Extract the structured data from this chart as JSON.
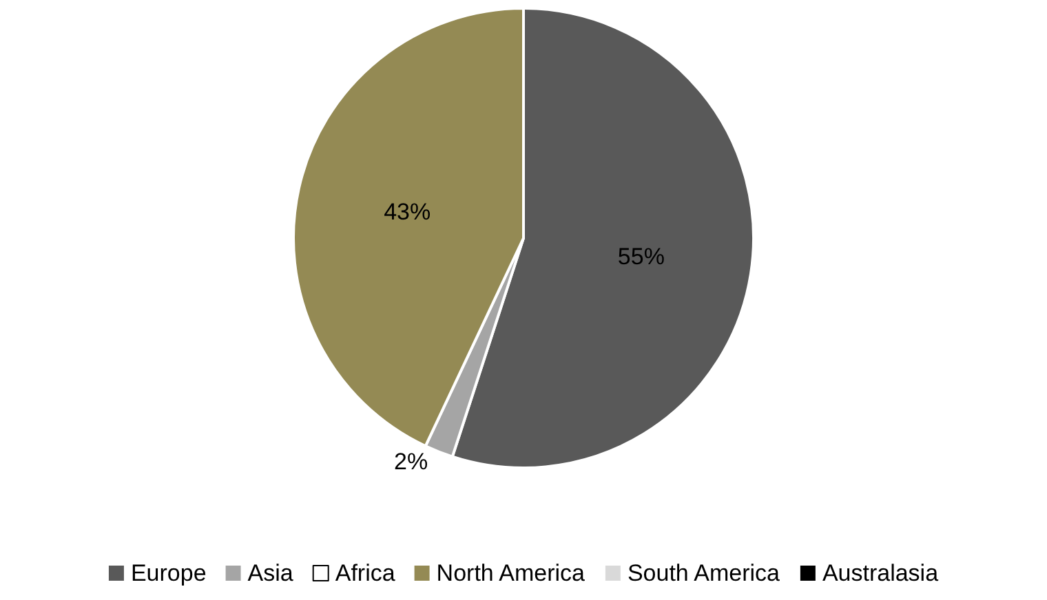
{
  "chart_data": {
    "type": "pie",
    "categories": [
      "Europe",
      "Asia",
      "Africa",
      "North America",
      "South America",
      "Australasia"
    ],
    "values": [
      55,
      2,
      0,
      43,
      0,
      0
    ],
    "colors": [
      "#595959",
      "#a5a5a5",
      "#ffffff",
      "#948a54",
      "#d9d9d9",
      "#000000"
    ],
    "value_labels": [
      "55%",
      "2%",
      null,
      "43%",
      null,
      null
    ],
    "legend": "bottom"
  }
}
